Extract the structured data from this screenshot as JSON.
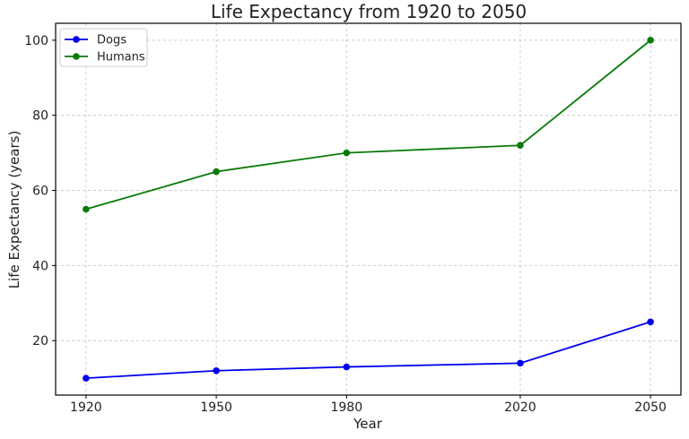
{
  "chart_data": {
    "type": "line",
    "title": "Life Expectancy from 1920 to 2050",
    "xlabel": "Year",
    "ylabel": "Life Expectancy (years)",
    "x": [
      1920,
      1950,
      1980,
      2020,
      2050
    ],
    "xticks": [
      "1920",
      "1950",
      "1980",
      "2020",
      "2050"
    ],
    "yticks": [
      "20",
      "40",
      "60",
      "80",
      "100"
    ],
    "xlim": [
      1913,
      2057
    ],
    "ylim": [
      5.5,
      104.5
    ],
    "grid": true,
    "legend_position": "top-left",
    "series": [
      {
        "name": "Dogs",
        "color": "#0000ee",
        "values": [
          10,
          12,
          13,
          14,
          25
        ]
      },
      {
        "name": "Humans",
        "color": "#0a7a0a",
        "values": [
          55,
          65,
          70,
          72,
          100
        ]
      }
    ]
  }
}
